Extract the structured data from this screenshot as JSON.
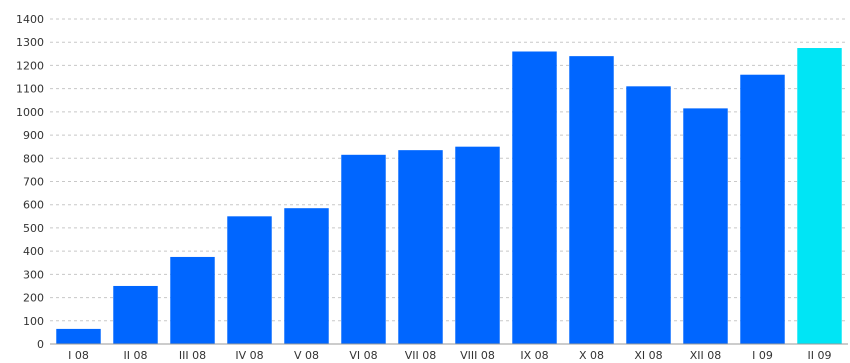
{
  "chart_data": {
    "type": "bar",
    "categories": [
      "I 08",
      "II 08",
      "III 08",
      "IV 08",
      "V 08",
      "VI 08",
      "VII 08",
      "VIII 08",
      "IX 08",
      "X 08",
      "XI 08",
      "XII 08",
      "I 09",
      "II 09"
    ],
    "values": [
      65,
      250,
      375,
      550,
      585,
      815,
      835,
      850,
      1260,
      1240,
      1110,
      1015,
      1160,
      1275
    ],
    "title": "",
    "xlabel": "",
    "ylabel": "",
    "ylim": [
      0,
      1400
    ],
    "yticks": [
      0,
      100,
      200,
      300,
      400,
      500,
      600,
      700,
      800,
      900,
      1000,
      1100,
      1200,
      1300,
      1400
    ],
    "grid": "horizontal dashed",
    "legend": "none",
    "colors": {
      "bar": "#0066ff",
      "highlight_bar": "#00e5f5",
      "highlight_index": 13
    }
  }
}
